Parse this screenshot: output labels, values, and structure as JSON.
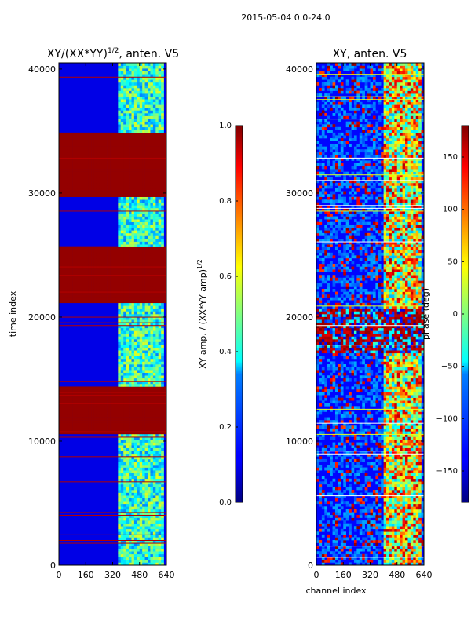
{
  "suptitle": "2015-05-04 0.0-24.0",
  "chart_data": [
    {
      "type": "heatmap",
      "title": "XY/(XX*YY)",
      "title_exponent": "1/2",
      "title_suffix": ", anten. V5",
      "xlabel": "",
      "ylabel": "time index",
      "xlim": [
        0,
        640
      ],
      "ylim": [
        0,
        40500
      ],
      "xticks": [
        0,
        160,
        320,
        480,
        640
      ],
      "yticks": [
        0,
        10000,
        20000,
        30000,
        40000
      ],
      "colorbar": {
        "label": "XY amp. / (XX*YY amp)",
        "label_exponent": "1/2",
        "range": [
          0.0,
          1.0
        ],
        "ticks": [
          "0.0",
          "0.2",
          "0.4",
          "0.6",
          "0.8",
          "1.0"
        ],
        "colormap": "jet"
      },
      "saturated_time_bands": [
        [
          10500,
          14200
        ],
        [
          21000,
          25500
        ],
        [
          29500,
          34800
        ]
      ],
      "bright_channel_range": [
        340,
        610
      ]
    },
    {
      "type": "heatmap",
      "title": "XY, anten. V5",
      "xlabel": "channel index",
      "ylabel": "",
      "xlim": [
        0,
        640
      ],
      "ylim": [
        0,
        40500
      ],
      "xticks": [
        0,
        160,
        320,
        480,
        640
      ],
      "yticks": [
        0,
        10000,
        20000,
        30000,
        40000
      ],
      "colorbar": {
        "label": "phase (deg)",
        "range": [
          -180,
          180
        ],
        "ticks": [
          "150",
          "100",
          "50",
          "0",
          "−50",
          "−100",
          "−150"
        ],
        "colormap": "jet"
      },
      "noisy_time_band": [
        17000,
        20700
      ],
      "bright_channel_range": [
        400,
        610
      ]
    }
  ]
}
